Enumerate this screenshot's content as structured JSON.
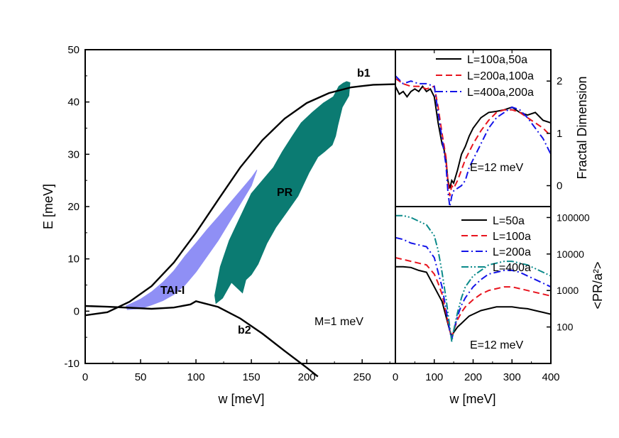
{
  "chart_data": [
    {
      "id": "main",
      "type": "line",
      "xlabel": "w [meV]",
      "ylabel": "E [meV]",
      "xlim": [
        0,
        280
      ],
      "ylim": [
        -10,
        50
      ],
      "xticks": [
        0,
        50,
        100,
        150,
        200,
        250
      ],
      "yticks": [
        -10,
        0,
        10,
        20,
        30,
        40,
        50
      ],
      "colors": {
        "tai": "#8f8ff5",
        "pr": "#0b7b72",
        "line": "#000000"
      },
      "series": [
        {
          "name": "b1",
          "x": [
            0,
            20,
            40,
            60,
            80,
            100,
            120,
            140,
            160,
            180,
            200,
            220,
            240,
            260,
            280
          ],
          "y": [
            -0.8,
            -0.2,
            1.8,
            4.8,
            9.3,
            15,
            21.3,
            27.5,
            32.7,
            36.8,
            39.8,
            41.7,
            42.8,
            43.3,
            43.4
          ]
        },
        {
          "name": "b2",
          "x": [
            0,
            20,
            40,
            60,
            80,
            95,
            100,
            120,
            140,
            160,
            180,
            200,
            210
          ],
          "y": [
            1,
            0.85,
            0.65,
            0.45,
            0.7,
            1.3,
            1.9,
            0.8,
            -1.4,
            -4.3,
            -7.6,
            -10.8,
            -12.5
          ]
        }
      ],
      "regions": [
        {
          "name": "TAI-I",
          "x": [
            37,
            42,
            50,
            60,
            70,
            80,
            90,
            100,
            110,
            120,
            130,
            140,
            150,
            155,
            150,
            140,
            130,
            120,
            110,
            100,
            90,
            80,
            70,
            60,
            50,
            38
          ],
          "y": [
            1,
            1.5,
            2.3,
            3.7,
            5.5,
            7.7,
            10.5,
            13,
            15.6,
            18,
            20.5,
            23,
            25.5,
            27,
            24,
            20.5,
            17,
            13.5,
            10.5,
            7.5,
            5,
            3.2,
            2,
            1.2,
            0.5,
            0.3
          ]
        },
        {
          "name": "PR",
          "x": [
            117,
            122,
            130,
            140,
            150,
            160,
            170,
            178,
            187,
            195,
            205,
            215,
            224,
            229,
            233,
            236,
            239,
            238,
            232,
            228,
            226,
            223,
            216,
            210,
            202,
            192,
            182,
            172,
            164,
            156,
            150,
            145,
            142,
            132,
            124,
            118
          ],
          "y": [
            3,
            8.5,
            13.5,
            18,
            22.5,
            25,
            27.5,
            30.5,
            33.5,
            36,
            38,
            39.8,
            41,
            43,
            43.6,
            43.9,
            43.7,
            41.2,
            39,
            35.5,
            33.5,
            31.8,
            30.5,
            29.5,
            26.5,
            22,
            19,
            16,
            13,
            9,
            7,
            6,
            3.5,
            5.5,
            2.5,
            1.5
          ]
        }
      ],
      "annotations": [
        "b1",
        "b2",
        "PR",
        "TAI-I",
        "M=1 meV"
      ]
    },
    {
      "id": "fractal",
      "type": "line",
      "ylabel": "Fractal Dimension",
      "xlim": [
        0,
        400
      ],
      "ylim": [
        -0.4,
        2.6
      ],
      "yticks": [
        0,
        1,
        2
      ],
      "annotation": "E=12 meV",
      "legend": "top-right",
      "series": [
        {
          "name": "L=100a,50a",
          "color": "#000000",
          "dash": "solid",
          "x": [
            0,
            10,
            20,
            30,
            40,
            50,
            60,
            70,
            80,
            90,
            100,
            110,
            120,
            125,
            130,
            135,
            140,
            145,
            150,
            160,
            170,
            180,
            190,
            200,
            220,
            240,
            260,
            280,
            300,
            320,
            340,
            360,
            380,
            400
          ],
          "y": [
            1.9,
            1.75,
            1.8,
            1.7,
            1.8,
            1.85,
            1.8,
            1.9,
            1.8,
            1.85,
            1.7,
            1.2,
            0.8,
            0.7,
            0.5,
            0.1,
            -0.05,
            0.1,
            0.05,
            0.3,
            0.6,
            0.75,
            0.95,
            1.1,
            1.3,
            1.4,
            1.42,
            1.45,
            1.5,
            1.4,
            1.35,
            1.4,
            1.25,
            1.2
          ]
        },
        {
          "name": "L=200a,100a",
          "color": "#e8141e",
          "dash": "dash",
          "x": [
            0,
            20,
            40,
            60,
            80,
            100,
            110,
            120,
            130,
            135,
            140,
            145,
            150,
            160,
            170,
            180,
            190,
            200,
            220,
            240,
            260,
            280,
            300,
            320,
            340,
            360,
            380,
            400
          ],
          "y": [
            2.05,
            1.95,
            1.9,
            1.9,
            1.85,
            1.9,
            1.5,
            1.0,
            0.55,
            0.1,
            -0.2,
            0,
            -0.05,
            0.1,
            0.3,
            0.5,
            0.65,
            0.8,
            1.05,
            1.25,
            1.4,
            1.45,
            1.45,
            1.4,
            1.3,
            1.2,
            1.1,
            0.95
          ]
        },
        {
          "name": "L=400a,200a",
          "color": "#1414e8",
          "dash": "dashdot",
          "x": [
            0,
            20,
            40,
            60,
            80,
            100,
            110,
            120,
            130,
            135,
            140,
            145,
            150,
            160,
            170,
            180,
            190,
            200,
            220,
            240,
            260,
            280,
            300,
            320,
            340,
            360,
            380,
            400
          ],
          "y": [
            2.1,
            1.95,
            2.0,
            1.95,
            1.95,
            1.9,
            1.4,
            0.9,
            0.4,
            -0.1,
            -0.4,
            -0.2,
            -0.1,
            -0.05,
            0.0,
            0.1,
            0.35,
            0.5,
            0.8,
            1.1,
            1.3,
            1.4,
            1.5,
            1.45,
            1.3,
            1.1,
            0.9,
            0.6
          ]
        }
      ]
    },
    {
      "id": "pr",
      "type": "line",
      "xlabel": "w [meV]",
      "ylabel": "<PR/a²>",
      "xlim": [
        0,
        400
      ],
      "ylog": [
        1,
        5.3
      ],
      "xticks": [
        0,
        100,
        200,
        300,
        400
      ],
      "yticks": [
        100,
        1000,
        10000,
        100000
      ],
      "annotation": "E=12 meV",
      "legend": "top-right",
      "series": [
        {
          "name": "L=50a",
          "color": "#000000",
          "dash": "solid",
          "x": [
            0,
            20,
            40,
            60,
            80,
            90,
            100,
            110,
            120,
            130,
            140,
            145,
            150,
            160,
            170,
            180,
            190,
            200,
            220,
            240,
            260,
            280,
            300,
            320,
            340,
            360,
            380,
            400
          ],
          "y": [
            3.65,
            3.65,
            3.63,
            3.55,
            3.5,
            3.3,
            3.1,
            2.9,
            2.7,
            2.3,
            1.9,
            1.75,
            1.85,
            2.0,
            2.1,
            2.2,
            2.3,
            2.35,
            2.45,
            2.5,
            2.55,
            2.55,
            2.55,
            2.52,
            2.5,
            2.45,
            2.4,
            2.35
          ]
        },
        {
          "name": "L=100a",
          "color": "#e8141e",
          "dash": "dash",
          "x": [
            0,
            20,
            40,
            60,
            80,
            100,
            110,
            120,
            130,
            140,
            145,
            150,
            160,
            170,
            180,
            200,
            220,
            240,
            260,
            280,
            300,
            320,
            340,
            360,
            380,
            400
          ],
          "y": [
            3.9,
            3.85,
            3.8,
            3.75,
            3.7,
            3.45,
            3.2,
            2.9,
            2.4,
            1.9,
            1.7,
            1.9,
            2.2,
            2.4,
            2.55,
            2.75,
            2.9,
            3.0,
            3.05,
            3.1,
            3.1,
            3.05,
            3.0,
            2.95,
            2.9,
            2.85
          ]
        },
        {
          "name": "L=200a",
          "color": "#1414e8",
          "dash": "dashdot",
          "x": [
            0,
            20,
            40,
            60,
            80,
            100,
            110,
            120,
            130,
            140,
            145,
            150,
            160,
            170,
            180,
            200,
            220,
            240,
            260,
            280,
            300,
            320,
            340,
            360,
            380,
            400
          ],
          "y": [
            4.45,
            4.4,
            4.3,
            4.25,
            4.2,
            3.9,
            3.5,
            3.1,
            2.5,
            1.9,
            1.65,
            1.9,
            2.3,
            2.6,
            2.8,
            3.1,
            3.3,
            3.45,
            3.5,
            3.55,
            3.55,
            3.5,
            3.4,
            3.3,
            3.2,
            3.1
          ]
        },
        {
          "name": "L=400a",
          "color": "#0b8a8a",
          "dash": "dashdotdot",
          "x": [
            0,
            20,
            40,
            60,
            80,
            100,
            110,
            120,
            130,
            140,
            145,
            150,
            160,
            170,
            180,
            200,
            220,
            240,
            260,
            280,
            300,
            320,
            340,
            360,
            380,
            400
          ],
          "y": [
            5.05,
            5.05,
            5.0,
            4.9,
            4.8,
            4.5,
            4.1,
            3.5,
            2.8,
            2.0,
            1.6,
            1.9,
            2.4,
            2.8,
            3.1,
            3.4,
            3.55,
            3.7,
            3.75,
            3.8,
            3.8,
            3.75,
            3.7,
            3.6,
            3.5,
            3.4
          ]
        }
      ]
    }
  ]
}
